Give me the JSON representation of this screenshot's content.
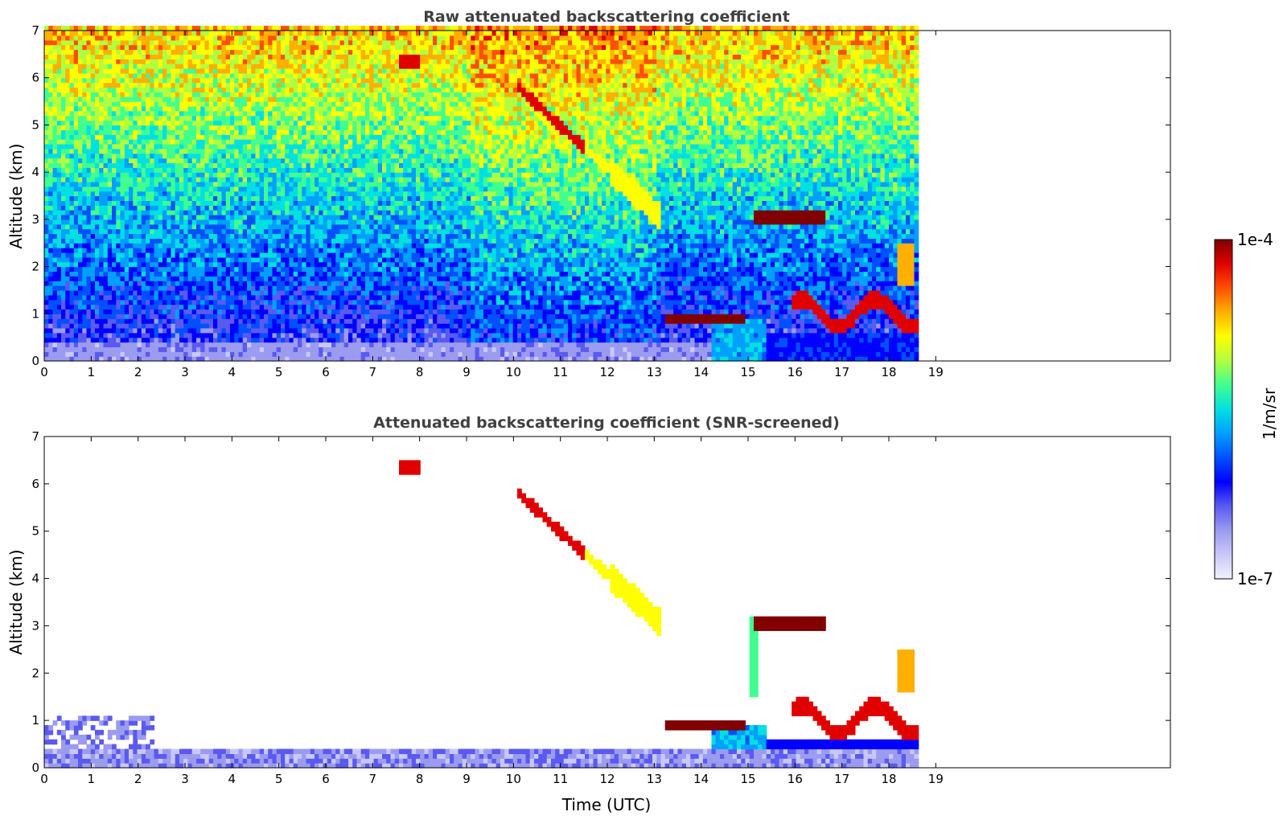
{
  "chart_data": [
    {
      "type": "heatmap",
      "title": "Raw attenuated backscattering coefficient",
      "ylabel": "Altitude (km)",
      "xlabel": "",
      "xlim": [
        0,
        24
      ],
      "ylim": [
        0,
        7
      ],
      "x_ticks": [
        "0",
        "1",
        "2",
        "3",
        "4",
        "5",
        "6",
        "7",
        "8",
        "9",
        "10",
        "11",
        "12",
        "13",
        "14",
        "15",
        "16",
        "17",
        "18",
        "19"
      ],
      "y_ticks": [
        "0",
        "1",
        "2",
        "3",
        "4",
        "5",
        "6",
        "7"
      ],
      "data_end_time": 18.6,
      "layers": [
        {
          "name": "cloud-6.3km",
          "t": [
            7.6,
            8.0
          ],
          "alt": [
            6.2,
            6.4
          ],
          "level": 0.9
        },
        {
          "name": "cloud-descending",
          "t": [
            10.0,
            13.1
          ],
          "alt_start": 5.8,
          "alt_end": 3.0,
          "level": 0.8
        },
        {
          "name": "cloud-3km",
          "t": [
            15.1,
            16.6
          ],
          "alt": [
            2.85,
            3.15
          ],
          "level": 0.95
        },
        {
          "name": "boundary-layer-0.8km",
          "t": [
            13.2,
            14.8
          ],
          "alt": [
            0.75,
            0.95
          ],
          "level": 0.95
        },
        {
          "name": "convective-column",
          "t": [
            14.2,
            15.3
          ],
          "alt": [
            0.0,
            0.8
          ],
          "level": 0.45
        },
        {
          "name": "low-cloud-1km",
          "t": [
            15.9,
            18.6
          ],
          "alt": [
            0.8,
            1.6
          ],
          "level": 0.9
        }
      ]
    },
    {
      "type": "heatmap",
      "title": "Attenuated backscattering coefficient (SNR-screened)",
      "ylabel": "Altitude (km)",
      "xlabel": "Time (UTC)",
      "xlim": [
        0,
        24
      ],
      "ylim": [
        0,
        7
      ],
      "x_ticks": [
        "0",
        "1",
        "2",
        "3",
        "4",
        "5",
        "6",
        "7",
        "8",
        "9",
        "10",
        "11",
        "12",
        "13",
        "14",
        "15",
        "16",
        "17",
        "18",
        "19"
      ],
      "y_ticks": [
        "0",
        "1",
        "2",
        "3",
        "4",
        "5",
        "6",
        "7"
      ],
      "data_end_time": 18.6
    }
  ],
  "colorbar": {
    "label": "1/m/sr",
    "max_label": "1e-4",
    "min_label": "1e-7",
    "colors": [
      "#f2f2ff",
      "#c8c8f8",
      "#9b9bf0",
      "#5a5af0",
      "#0000ff",
      "#0050ff",
      "#00a0ff",
      "#00e0e0",
      "#40ff90",
      "#b0ff40",
      "#ffff00",
      "#ffb000",
      "#ff5000",
      "#e00000",
      "#800000"
    ]
  }
}
